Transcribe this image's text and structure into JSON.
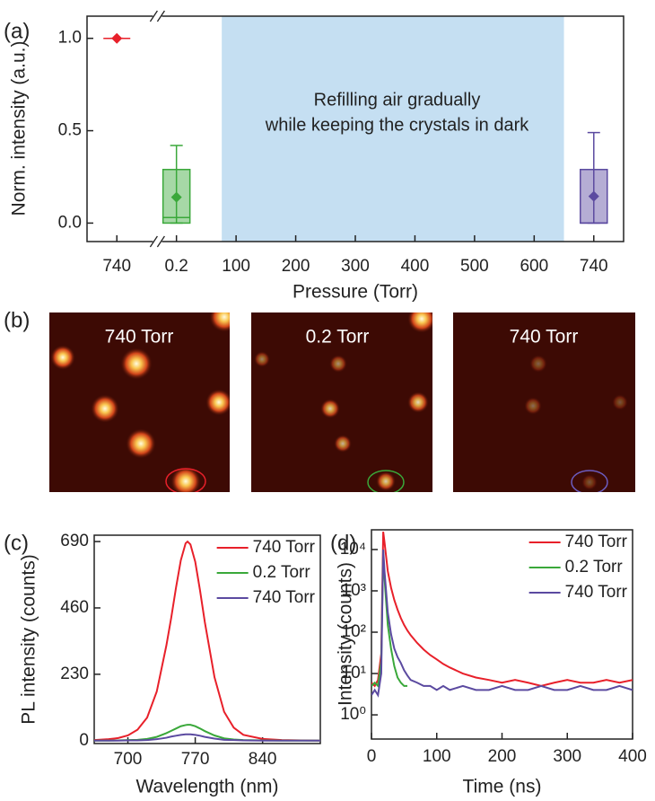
{
  "chart_data": [
    {
      "type": "box",
      "panel_label": "(a)",
      "categories": [
        "740",
        "0.2",
        "100",
        "200",
        "300",
        "400",
        "500",
        "600",
        "740"
      ],
      "min": [
        1.0,
        0.0,
        null,
        null,
        null,
        null,
        null,
        null,
        0.0
      ],
      "q1": [
        1.0,
        0.0,
        null,
        null,
        null,
        null,
        null,
        null,
        0.0
      ],
      "median": [
        1.0,
        0.03,
        null,
        null,
        null,
        null,
        null,
        null,
        0.0
      ],
      "q3": [
        1.0,
        0.29,
        null,
        null,
        null,
        null,
        null,
        null,
        0.29
      ],
      "max": [
        1.0,
        0.42,
        null,
        null,
        null,
        null,
        null,
        null,
        0.49
      ],
      "mean": [
        1.0,
        0.14,
        null,
        null,
        null,
        null,
        null,
        null,
        0.145
      ],
      "colors": [
        "#e8202a",
        "#3aa83a",
        null,
        null,
        null,
        null,
        null,
        null,
        "#5b4aa0"
      ],
      "ylim": [
        -0.1,
        1.12
      ],
      "yticks": [
        {
          "value": 0,
          "label": "0.0"
        },
        {
          "value": 0.5,
          "label": "0.5"
        },
        {
          "value": 1,
          "label": "1.0"
        }
      ],
      "xlabel": "Pressure (Torr)",
      "ylabel": "Norm. intensity (a.u.)",
      "annotation": [
        "Refilling air gradually",
        "while keeping the crystals in dark"
      ],
      "shade_color": "#c5dff2"
    },
    {
      "type": "line",
      "panel_label": "(c)",
      "x": [
        665,
        680,
        690,
        700,
        710,
        720,
        730,
        740,
        745,
        750,
        755,
        760,
        762,
        765,
        770,
        775,
        780,
        790,
        800,
        810,
        820,
        840,
        860,
        880,
        900
      ],
      "series": [
        {
          "name": "740 Torr",
          "color": "#e8202a",
          "values": [
            2,
            5,
            9,
            18,
            38,
            80,
            170,
            330,
            425,
            530,
            625,
            684,
            690,
            680,
            620,
            520,
            410,
            220,
            100,
            45,
            20,
            6,
            2,
            1,
            0
          ]
        },
        {
          "name": "0.2 Torr",
          "color": "#3aa83a",
          "values": [
            0,
            0,
            1,
            2,
            3,
            6,
            13,
            26,
            34,
            42,
            50,
            54,
            55,
            55,
            50,
            42,
            33,
            18,
            8,
            4,
            2,
            1,
            0,
            0,
            0
          ]
        },
        {
          "name": "740 Torr",
          "color": "#5b4aa0",
          "values": [
            0,
            0,
            0,
            1,
            1,
            2,
            5,
            10,
            14,
            17,
            20,
            22,
            22,
            22,
            20,
            17,
            13,
            7,
            3,
            2,
            1,
            0,
            0,
            0,
            0
          ]
        }
      ],
      "xlim": [
        665,
        900
      ],
      "ylim": [
        -10,
        712
      ],
      "xticks": [
        700,
        770,
        840
      ],
      "yticks": [
        0,
        230,
        460,
        690
      ],
      "xlabel": "Wavelength (nm)",
      "ylabel": "PL intensity (counts)",
      "legend": "upper right"
    },
    {
      "type": "line",
      "panel_label": "(d)",
      "log_y": true,
      "x": [
        0,
        5,
        10,
        15,
        18,
        20,
        25,
        30,
        35,
        40,
        45,
        50,
        55,
        60,
        70,
        80,
        90,
        100,
        110,
        120,
        140,
        160,
        180,
        200,
        220,
        240,
        260,
        280,
        300,
        320,
        340,
        360,
        380,
        400
      ],
      "series": [
        {
          "name": "740 Torr",
          "color": "#e8202a",
          "values": [
            6,
            5,
            7,
            30,
            27000,
            15000,
            3000,
            1200,
            600,
            350,
            220,
            150,
            110,
            85,
            55,
            38,
            28,
            22,
            17,
            14,
            10,
            8,
            7,
            6,
            7,
            6,
            5,
            6,
            7,
            6,
            6,
            7,
            6,
            7
          ]
        },
        {
          "name": "0.2 Torr",
          "color": "#3aa83a",
          "values": [
            5,
            6,
            5,
            20,
            9000,
            2000,
            150,
            40,
            15,
            8,
            6,
            5,
            5,
            null,
            null,
            null,
            null,
            null,
            null,
            null,
            null,
            null,
            null,
            null,
            null,
            null,
            null,
            null,
            null,
            null,
            null,
            null,
            null,
            null
          ]
        },
        {
          "name": "740 Torr",
          "color": "#5b4aa0",
          "values": [
            3,
            4,
            3,
            10,
            10000,
            3000,
            300,
            90,
            40,
            25,
            18,
            12,
            9,
            7,
            6,
            5,
            5,
            4,
            5,
            4,
            5,
            4,
            4,
            5,
            4,
            4,
            5,
            4,
            4,
            5,
            4,
            4,
            5,
            4
          ]
        }
      ],
      "xlim": [
        0,
        400
      ],
      "ylim": [
        0.26,
        30000
      ],
      "xticks": [
        0,
        100,
        200,
        300,
        400
      ],
      "yticks": [
        {
          "value": 1,
          "label": "10⁰"
        },
        {
          "value": 10,
          "label": "10¹"
        },
        {
          "value": 100,
          "label": "10²"
        },
        {
          "value": 1000,
          "label": "10³"
        },
        {
          "value": 10000,
          "label": "10⁴"
        }
      ],
      "xlabel": "Time (ns)",
      "ylabel": "Intensity (counts)",
      "legend": "upper right"
    }
  ],
  "panel_b": {
    "label": "(b)",
    "images": [
      "740 Torr",
      "0.2 Torr",
      "740 Torr"
    ]
  }
}
